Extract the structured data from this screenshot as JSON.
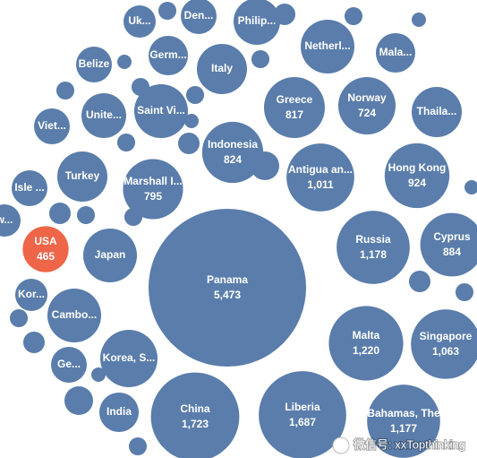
{
  "chart_data": {
    "type": "bubble",
    "categories": [
      "Panama",
      "China",
      "Liberia",
      "Bahamas, The",
      "Singapore",
      "Malta",
      "Russia",
      "Cyprus",
      "Hong Kong",
      "Antigua an...",
      "Norway",
      "Greece",
      "Indonesia",
      "Marshall I...",
      "USA",
      "Thaila...",
      "Netherl...",
      "Mala...",
      "Philip...",
      "Den...",
      "Uk...",
      "Germ...",
      "Italy",
      "Saint Vi...",
      "Belize",
      "Unite...",
      "Viet...",
      "Turkey",
      "Isle ...",
      "w...",
      "Japan",
      "Kor...",
      "Cambo...",
      "Korea, S...",
      "Ge...",
      "India",
      null,
      null,
      null,
      null,
      null,
      null,
      null,
      null,
      null,
      null,
      null,
      null,
      null,
      null,
      null,
      null,
      null,
      null,
      null,
      null,
      null,
      null,
      null,
      null
    ],
    "values": [
      5473,
      1723,
      1687,
      1177,
      1063,
      1220,
      1178,
      884,
      924,
      1011,
      724,
      817,
      824,
      795,
      465,
      554,
      636,
      342,
      477,
      282,
      229,
      342,
      554,
      636,
      282,
      441,
      282,
      554,
      282,
      229,
      636,
      229,
      636,
      723,
      282,
      342,
      71,
      45,
      71,
      71,
      71,
      102,
      71,
      45,
      71,
      71,
      45,
      102,
      71,
      71,
      102,
      71,
      102,
      45,
      181,
      71,
      181,
      102,
      71,
      45
    ],
    "value_labels": [
      "5,473",
      "1,723",
      "1,687",
      "1,177",
      "1,063",
      "1,220",
      "1,178",
      "884",
      "924",
      "1,011",
      "724",
      "817",
      "824",
      "795",
      "465",
      null,
      null,
      null,
      null,
      null,
      null,
      null,
      null,
      null,
      null,
      null,
      null,
      null,
      null,
      null,
      null,
      null,
      null,
      null,
      null,
      null,
      null,
      null,
      null,
      null,
      null,
      null,
      null,
      null,
      null,
      null,
      null,
      null,
      null,
      null,
      null,
      null,
      null,
      null,
      null,
      null,
      null,
      null,
      null,
      null
    ],
    "color": "#5a7dab",
    "highlight_color": "#ef6548",
    "highlight": [
      "USA"
    ],
    "watermark": "微信号: xxTopthinking"
  }
}
